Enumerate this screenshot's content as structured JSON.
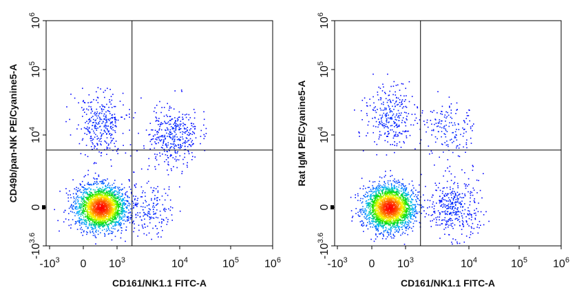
{
  "chart_data": [
    {
      "type": "scatter",
      "title": "",
      "xlabel": "CD161/NK1.1 FITC-A",
      "ylabel": "CD49b/pan-NK PE/Cyanine5-A",
      "x_scale": "biexponential",
      "y_scale": "biexponential",
      "x_ticks": [
        {
          "base": "-10",
          "exp": "3"
        },
        {
          "base": "0",
          "exp": ""
        },
        {
          "base": "10",
          "exp": "3"
        },
        {
          "base": "10",
          "exp": "4"
        },
        {
          "base": "10",
          "exp": "5"
        },
        {
          "base": "10",
          "exp": "6"
        }
      ],
      "y_ticks": [
        {
          "base": "-10",
          "exp": "3.6"
        },
        {
          "base": "0",
          "exp": ""
        },
        {
          "base": "10",
          "exp": "4"
        },
        {
          "base": "10",
          "exp": "5"
        },
        {
          "base": "10",
          "exp": "6"
        }
      ],
      "quadrant_gates": {
        "x": 1800,
        "y": 4300
      },
      "populations": [
        {
          "center": [
            300,
            0
          ],
          "weight": 0.72
        },
        {
          "center": [
            8000,
            9000
          ],
          "weight": 0.12
        },
        {
          "center": [
            3500,
            0
          ],
          "weight": 0.06
        },
        {
          "center": [
            300,
            15000
          ],
          "weight": 0.1
        }
      ],
      "colormap": [
        "#0000ff",
        "#00b7ff",
        "#00e000",
        "#ffff00",
        "#ff7a00",
        "#ff0000"
      ]
    },
    {
      "type": "scatter",
      "title": "",
      "xlabel": "CD161/NK1.1 FITC-A",
      "ylabel": "Rat IgM PE/Cyanine5-A",
      "x_scale": "biexponential",
      "y_scale": "biexponential",
      "x_ticks": [
        {
          "base": "-10",
          "exp": "3"
        },
        {
          "base": "0",
          "exp": ""
        },
        {
          "base": "10",
          "exp": "3"
        },
        {
          "base": "10",
          "exp": "4"
        },
        {
          "base": "10",
          "exp": "5"
        },
        {
          "base": "10",
          "exp": "6"
        }
      ],
      "y_ticks": [
        {
          "base": "-10",
          "exp": "3.6"
        },
        {
          "base": "0",
          "exp": ""
        },
        {
          "base": "10",
          "exp": "4"
        },
        {
          "base": "10",
          "exp": "5"
        },
        {
          "base": "10",
          "exp": "6"
        }
      ],
      "quadrant_gates": {
        "x": 1800,
        "y": 4300
      },
      "populations": [
        {
          "center": [
            300,
            0
          ],
          "weight": 0.74
        },
        {
          "center": [
            6000,
            0
          ],
          "weight": 0.12
        },
        {
          "center": [
            300,
            20000
          ],
          "weight": 0.09
        },
        {
          "center": [
            5000,
            12000
          ],
          "weight": 0.05
        }
      ],
      "colormap": [
        "#0000ff",
        "#00b7ff",
        "#00e000",
        "#ffff00",
        "#ff7a00",
        "#ff0000"
      ]
    }
  ]
}
